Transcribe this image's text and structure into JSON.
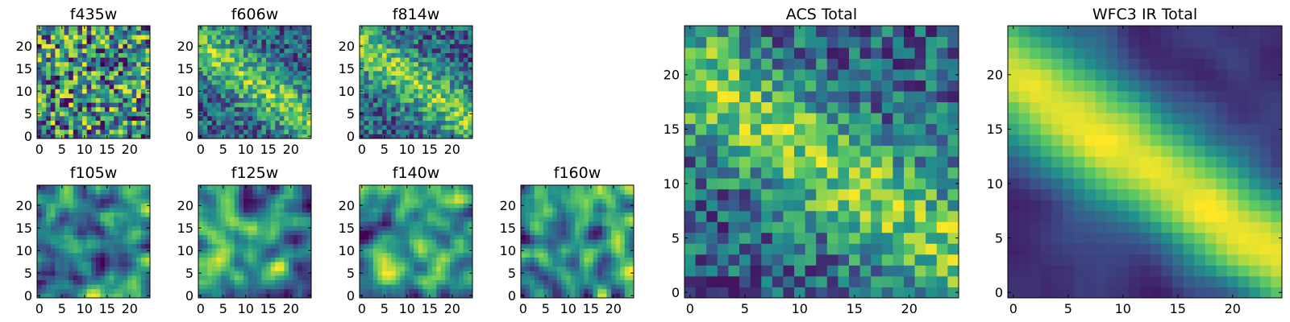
{
  "figure": {
    "background": "#ffffff",
    "colormap": "viridis",
    "colormap_stops": [
      "#440154",
      "#3b528b",
      "#21918c",
      "#5ec962",
      "#fde725"
    ]
  },
  "chart_data": [
    {
      "type": "heatmap",
      "title": "f435w",
      "grid": false,
      "size": 25,
      "xticks": [
        0,
        5,
        10,
        15,
        20
      ],
      "yticks": [
        0,
        5,
        10,
        15,
        20
      ],
      "xlim": [
        0,
        24
      ],
      "ylim": [
        0,
        24
      ],
      "structure": "noise",
      "seed": 11
    },
    {
      "type": "heatmap",
      "title": "f606w",
      "grid": false,
      "size": 25,
      "xticks": [
        0,
        5,
        10,
        15,
        20
      ],
      "yticks": [
        0,
        5,
        10,
        15,
        20
      ],
      "xlim": [
        0,
        24
      ],
      "ylim": [
        0,
        24
      ],
      "structure": "noise-with-diagonal-band",
      "seed": 23
    },
    {
      "type": "heatmap",
      "title": "f814w",
      "grid": false,
      "size": 25,
      "xticks": [
        0,
        5,
        10,
        15,
        20
      ],
      "yticks": [
        0,
        5,
        10,
        15,
        20
      ],
      "xlim": [
        0,
        24
      ],
      "ylim": [
        0,
        24
      ],
      "structure": "noise-with-diagonal-band",
      "seed": 37
    },
    {
      "type": "heatmap",
      "title": "f105w",
      "grid": false,
      "size": 25,
      "xticks": [
        0,
        5,
        10,
        15,
        20
      ],
      "yticks": [
        0,
        5,
        10,
        15,
        20
      ],
      "xlim": [
        0,
        24
      ],
      "ylim": [
        0,
        24
      ],
      "structure": "smooth-noise",
      "seed": 41
    },
    {
      "type": "heatmap",
      "title": "f125w",
      "grid": false,
      "size": 25,
      "xticks": [
        0,
        5,
        10,
        15,
        20
      ],
      "yticks": [
        0,
        5,
        10,
        15,
        20
      ],
      "xlim": [
        0,
        24
      ],
      "ylim": [
        0,
        24
      ],
      "structure": "smooth-noise",
      "seed": 53
    },
    {
      "type": "heatmap",
      "title": "f140w",
      "grid": false,
      "size": 25,
      "xticks": [
        0,
        5,
        10,
        15,
        20
      ],
      "yticks": [
        0,
        5,
        10,
        15,
        20
      ],
      "xlim": [
        0,
        24
      ],
      "ylim": [
        0,
        24
      ],
      "structure": "smooth-noise",
      "seed": 67
    },
    {
      "type": "heatmap",
      "title": "f160w",
      "grid": false,
      "size": 25,
      "xticks": [
        0,
        5,
        10,
        15,
        20
      ],
      "yticks": [
        0,
        5,
        10,
        15,
        20
      ],
      "xlim": [
        0,
        24
      ],
      "ylim": [
        0,
        24
      ],
      "structure": "smooth-noise",
      "seed": 79
    },
    {
      "type": "heatmap",
      "title": "ACS Total",
      "grid": false,
      "size": 25,
      "xticks": [
        0,
        5,
        10,
        15,
        20
      ],
      "yticks": [
        0,
        5,
        10,
        15,
        20
      ],
      "xlim": [
        0,
        24
      ],
      "ylim": [
        0,
        24
      ],
      "structure": "noise-with-diagonal-band",
      "seed": 97
    },
    {
      "type": "heatmap",
      "title": "WFC3 IR Total",
      "grid": false,
      "size": 25,
      "xticks": [
        0,
        5,
        10,
        15,
        20
      ],
      "yticks": [
        0,
        5,
        10,
        15,
        20
      ],
      "xlim": [
        0,
        24
      ],
      "ylim": [
        0,
        24
      ],
      "structure": "smooth-diagonal-band",
      "seed": 101
    }
  ]
}
